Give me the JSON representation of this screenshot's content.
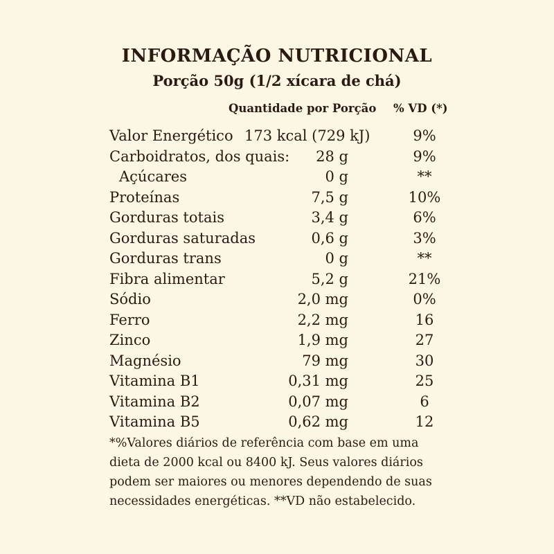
{
  "label": {
    "title": "INFORMAÇÃO NUTRICIONAL",
    "serving": "Porção 50g (1/2 xícara de chá)",
    "header_quantity": "Quantidade por Porção",
    "header_dv": "% VD (*)",
    "rows": [
      {
        "name": "Valor Energético",
        "amount": "173 kcal (729 kJ)",
        "dv": "9%"
      },
      {
        "name": "Carboidratos, dos quais:",
        "amount": "28 g",
        "dv": "9%"
      },
      {
        "name": "Açúcares",
        "amount": "0 g",
        "dv": "**"
      },
      {
        "name": "Proteínas",
        "amount": "7,5 g",
        "dv": "10%"
      },
      {
        "name": "Gorduras totais",
        "amount": "3,4 g",
        "dv": "6%"
      },
      {
        "name": "Gorduras saturadas",
        "amount": "0,6 g",
        "dv": "3%"
      },
      {
        "name": "Gorduras trans",
        "amount": "0 g",
        "dv": "**"
      },
      {
        "name": "Fibra alimentar",
        "amount": "5,2 g",
        "dv": "21%"
      },
      {
        "name": "Sódio",
        "amount": "2,0 mg",
        "dv": "0%"
      },
      {
        "name": "Ferro",
        "amount": "2,2 mg",
        "dv": "16"
      },
      {
        "name": "Zinco",
        "amount": "1,9 mg",
        "dv": "27"
      },
      {
        "name": "Magnésio",
        "amount": "79 mg",
        "dv": "30"
      },
      {
        "name": "Vitamina B1",
        "amount": "0,31 mg",
        "dv": "25"
      },
      {
        "name": "Vitamina B2",
        "amount": "0,07 mg",
        "dv": "6"
      },
      {
        "name": "Vitamina B5",
        "amount": "0,62 mg",
        "dv": "12"
      }
    ],
    "footnote": "*%Valores diários de referência com base em uma dieta de 2000 kcal ou 8400 kJ. Seus valores diários podem ser maiores ou menores dependendo de suas necessidades energéticas. **VD não estabelecido."
  }
}
